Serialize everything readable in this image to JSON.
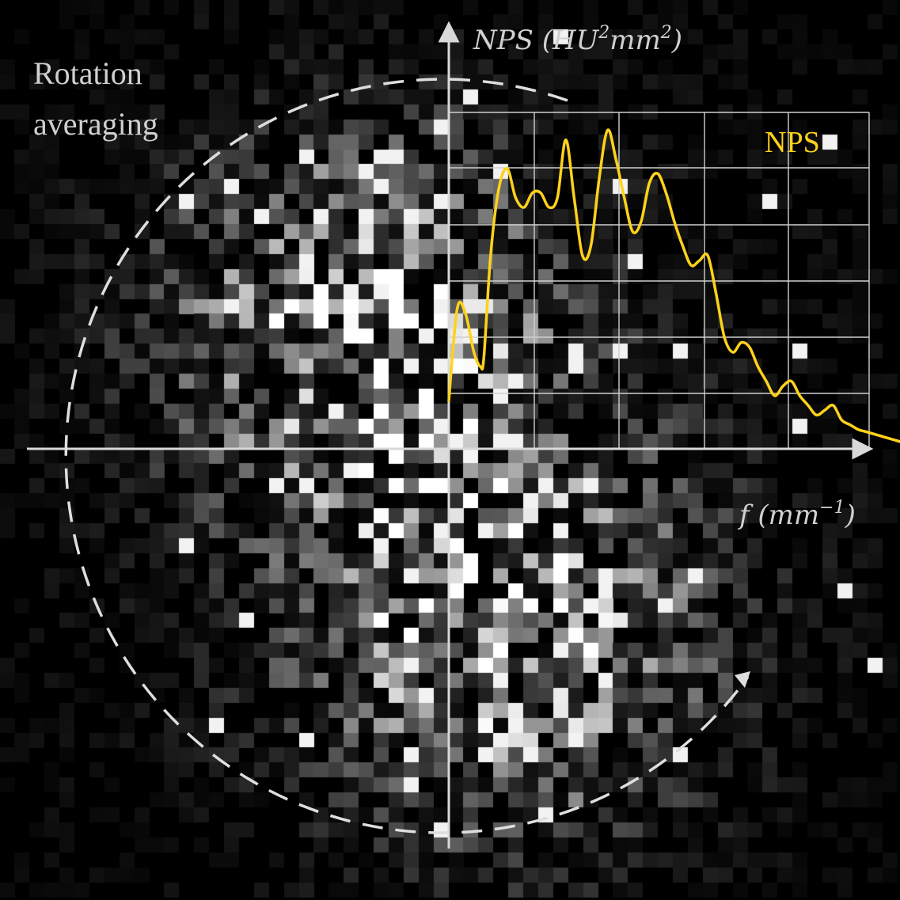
{
  "labels": {
    "rotation_line1": "Rotation",
    "rotation_line2": "averaging",
    "curve_label": "NPS",
    "y_axis_base": "NPS (HU",
    "y_axis_sup1": "2",
    "y_axis_mid": "mm",
    "y_axis_sup2": "2",
    "y_axis_end": ")",
    "x_axis_base": "f (mm",
    "x_axis_sup": "−1",
    "x_axis_end": ")"
  },
  "colors": {
    "background": "#000000",
    "axis": "#d9d9d9",
    "grid": "#cfcfcf",
    "curve": "#ffd21a",
    "text": "#d0d0d0",
    "dashed_circle": "#dedede"
  },
  "chart_data": {
    "type": "line",
    "title": "",
    "xlabel": "f (mm⁻¹)",
    "ylabel": "NPS (HU²mm²)",
    "grid": true,
    "series": [
      {
        "name": "NPS",
        "x": [
          0.0,
          0.1,
          0.2,
          0.3,
          0.38,
          0.42,
          0.5,
          0.6,
          0.7,
          0.8,
          0.9,
          1.0,
          1.1,
          1.2,
          1.3,
          1.4,
          1.5,
          1.6,
          1.7,
          1.8,
          1.9,
          2.0,
          2.1,
          2.2,
          2.3,
          2.4,
          2.5,
          2.6,
          2.7,
          2.8,
          2.9,
          3.0,
          3.1,
          3.2,
          3.3,
          3.4,
          3.5,
          3.6,
          3.7,
          3.8,
          3.9,
          4.0,
          4.1,
          4.2,
          4.3,
          4.4,
          4.5,
          4.6,
          4.7,
          4.8,
          4.9,
          5.0,
          5.1,
          5.2,
          5.4
        ],
        "y": [
          1.0,
          2.9,
          2.8,
          2.0,
          1.7,
          1.9,
          4.0,
          5.4,
          5.8,
          5.2,
          5.0,
          5.3,
          5.3,
          5.0,
          5.2,
          6.4,
          5.2,
          4.0,
          4.2,
          5.6,
          6.6,
          6.0,
          5.2,
          4.5,
          4.7,
          5.5,
          5.7,
          5.3,
          4.7,
          4.2,
          3.8,
          3.9,
          4.0,
          3.2,
          2.3,
          2.0,
          2.2,
          2.1,
          1.7,
          1.4,
          1.1,
          1.3,
          1.4,
          1.1,
          0.9,
          0.7,
          0.8,
          0.9,
          0.6,
          0.5,
          0.4,
          0.35,
          0.3,
          0.25,
          0.15
        ]
      }
    ],
    "xlim": [
      0,
      5.4
    ],
    "ylim": [
      0,
      7.0
    ]
  }
}
